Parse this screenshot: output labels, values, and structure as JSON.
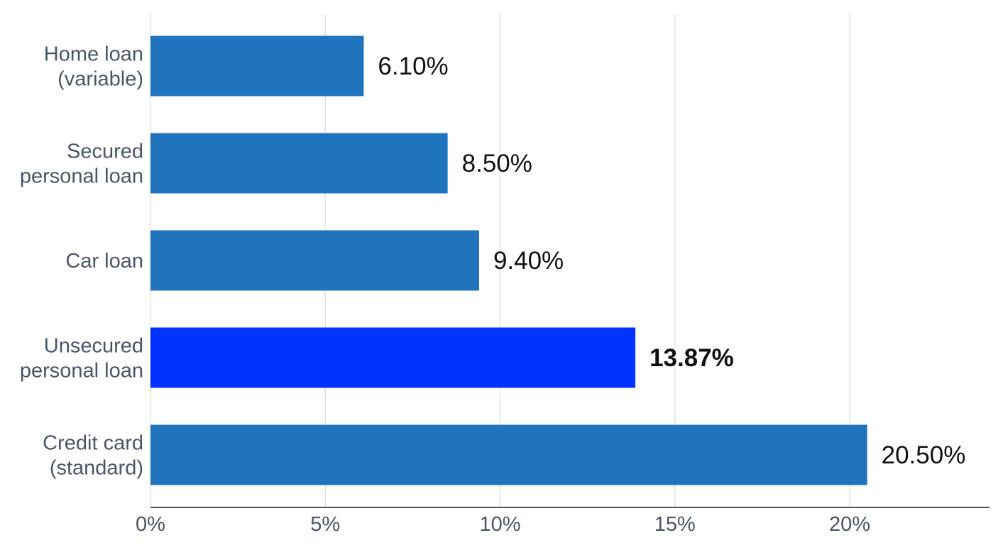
{
  "chart_data": {
    "type": "bar",
    "orientation": "horizontal",
    "categories": [
      "Home loan\n(variable)",
      "Secured\npersonal loan",
      "Car loan",
      "Unsecured\npersonal loan",
      "Credit card\n(standard)"
    ],
    "values": [
      6.1,
      8.5,
      9.4,
      13.87,
      20.5
    ],
    "value_labels": [
      "6.10%",
      "8.50%",
      "9.40%",
      "13.87%",
      "20.50%"
    ],
    "highlight_index": 3,
    "xticks": [
      0,
      5,
      10,
      15,
      20
    ],
    "xtick_labels": [
      "0%",
      "5%",
      "10%",
      "15%",
      "20%"
    ],
    "xlim": [
      0,
      24
    ],
    "grid": "vertical",
    "title": "",
    "xlabel": "",
    "ylabel": "",
    "colors": {
      "bar": "#1f74bd",
      "highlight": "#0033ff"
    }
  }
}
